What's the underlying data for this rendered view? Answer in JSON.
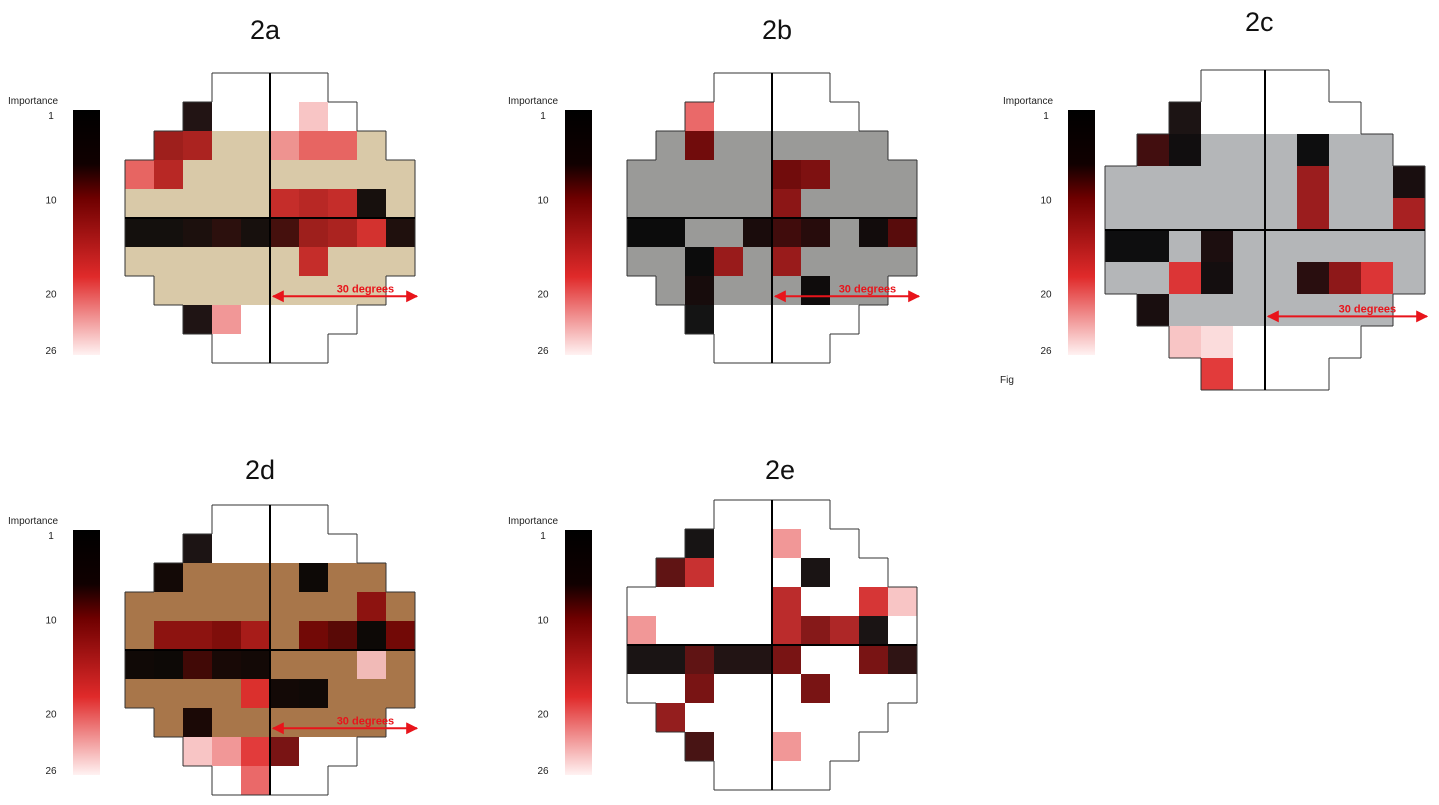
{
  "panels": [
    {
      "title": "2a",
      "colorbar_label": "Importance",
      "colorbar_ticks": [
        1,
        10,
        20,
        26
      ],
      "arrow_label": "30 degrees",
      "background": "#d9c9a8",
      "cells": [
        {
          "row": 5,
          "col": 0,
          "rank": 2
        },
        {
          "row": 5,
          "col": 1,
          "rank": 2
        },
        {
          "row": 5,
          "col": 2,
          "rank": 5
        },
        {
          "row": 5,
          "col": 3,
          "rank": 7
        },
        {
          "row": 5,
          "col": 4,
          "rank": 3
        },
        {
          "row": 5,
          "col": 5,
          "rank": 8
        },
        {
          "row": 5,
          "col": 6,
          "rank": 13
        },
        {
          "row": 5,
          "col": 7,
          "rank": 14
        },
        {
          "row": 5,
          "col": 8,
          "rank": 17
        },
        {
          "row": 5,
          "col": 9,
          "rank": 6
        },
        {
          "row": 1,
          "col": 2,
          "rank": 6
        },
        {
          "row": 1,
          "col": 6,
          "rank": 24
        },
        {
          "row": 2,
          "col": 1,
          "rank": 13
        },
        {
          "row": 2,
          "col": 2,
          "rank": 14
        },
        {
          "row": 2,
          "col": 5,
          "rank": 22
        },
        {
          "row": 2,
          "col": 6,
          "rank": 20
        },
        {
          "row": 2,
          "col": 7,
          "rank": 20
        },
        {
          "row": 3,
          "col": 0,
          "rank": 20
        },
        {
          "row": 3,
          "col": 1,
          "rank": 15
        },
        {
          "row": 4,
          "col": 5,
          "rank": 16
        },
        {
          "row": 4,
          "col": 6,
          "rank": 15
        },
        {
          "row": 4,
          "col": 7,
          "rank": 16
        },
        {
          "row": 4,
          "col": 8,
          "rank": 3
        },
        {
          "row": 6,
          "col": 6,
          "rank": 16
        },
        {
          "row": 8,
          "col": 2,
          "rank": 5
        },
        {
          "row": 8,
          "col": 3,
          "rank": 22
        }
      ]
    },
    {
      "title": "2b",
      "colorbar_label": "Importance",
      "colorbar_ticks": [
        1,
        10,
        20,
        26
      ],
      "arrow_label": "30 degrees",
      "background": "#9a9a98",
      "cells": [
        {
          "row": 1,
          "col": 2,
          "rank": 20
        },
        {
          "row": 2,
          "col": 2,
          "rank": 10
        },
        {
          "row": 3,
          "col": 5,
          "rank": 10
        },
        {
          "row": 3,
          "col": 6,
          "rank": 11
        },
        {
          "row": 4,
          "col": 5,
          "rank": 12
        },
        {
          "row": 5,
          "col": 0,
          "rank": 1
        },
        {
          "row": 5,
          "col": 1,
          "rank": 1
        },
        {
          "row": 5,
          "col": 4,
          "rank": 6
        },
        {
          "row": 5,
          "col": 5,
          "rank": 8
        },
        {
          "row": 5,
          "col": 6,
          "rank": 7
        },
        {
          "row": 5,
          "col": 8,
          "rank": 3
        },
        {
          "row": 5,
          "col": 9,
          "rank": 9
        },
        {
          "row": 6,
          "col": 2,
          "rank": 1
        },
        {
          "row": 6,
          "col": 3,
          "rank": 13
        },
        {
          "row": 6,
          "col": 5,
          "rank": 13
        },
        {
          "row": 7,
          "col": 2,
          "rank": 5
        },
        {
          "row": 7,
          "col": 6,
          "rank": 2
        },
        {
          "row": 8,
          "col": 2,
          "rank": 1
        }
      ]
    },
    {
      "title": "2c",
      "colorbar_label": "Importance",
      "colorbar_ticks": [
        1,
        10,
        20,
        26
      ],
      "arrow_label": "30 degrees",
      "background": "#b4b6b8",
      "cells": [
        {
          "row": 1,
          "col": 2,
          "rank": 4
        },
        {
          "row": 2,
          "col": 1,
          "rank": 8
        },
        {
          "row": 2,
          "col": 2,
          "rank": 2
        },
        {
          "row": 2,
          "col": 6,
          "rank": 1
        },
        {
          "row": 3,
          "col": 6,
          "rank": 13
        },
        {
          "row": 3,
          "col": 9,
          "rank": 5
        },
        {
          "row": 4,
          "col": 6,
          "rank": 13
        },
        {
          "row": 4,
          "col": 9,
          "rank": 14
        },
        {
          "row": 5,
          "col": 0,
          "rank": 1
        },
        {
          "row": 5,
          "col": 1,
          "rank": 1
        },
        {
          "row": 5,
          "col": 3,
          "rank": 6
        },
        {
          "row": 6,
          "col": 2,
          "rank": 18
        },
        {
          "row": 6,
          "col": 3,
          "rank": 3
        },
        {
          "row": 6,
          "col": 6,
          "rank": 7
        },
        {
          "row": 6,
          "col": 7,
          "rank": 12
        },
        {
          "row": 6,
          "col": 8,
          "rank": 18
        },
        {
          "row": 7,
          "col": 1,
          "rank": 5
        },
        {
          "row": 8,
          "col": 2,
          "rank": 24
        },
        {
          "row": 8,
          "col": 3,
          "rank": 25
        },
        {
          "row": 9,
          "col": 3,
          "rank": 18
        }
      ]
    },
    {
      "title": "2d",
      "colorbar_label": "Importance",
      "colorbar_ticks": [
        1,
        10,
        20,
        26
      ],
      "arrow_label": "30 degrees",
      "background": "#a8764a",
      "cells": [
        {
          "row": 1,
          "col": 2,
          "rank": 4
        },
        {
          "row": 2,
          "col": 1,
          "rank": 3
        },
        {
          "row": 2,
          "col": 6,
          "rank": 1
        },
        {
          "row": 3,
          "col": 8,
          "rank": 12
        },
        {
          "row": 4,
          "col": 1,
          "rank": 12
        },
        {
          "row": 4,
          "col": 2,
          "rank": 12
        },
        {
          "row": 4,
          "col": 3,
          "rank": 11
        },
        {
          "row": 4,
          "col": 4,
          "rank": 14
        },
        {
          "row": 4,
          "col": 6,
          "rank": 10
        },
        {
          "row": 4,
          "col": 7,
          "rank": 9
        },
        {
          "row": 4,
          "col": 8,
          "rank": 1
        },
        {
          "row": 4,
          "col": 9,
          "rank": 10
        },
        {
          "row": 5,
          "col": 0,
          "rank": 2
        },
        {
          "row": 5,
          "col": 1,
          "rank": 1
        },
        {
          "row": 5,
          "col": 2,
          "rank": 8
        },
        {
          "row": 5,
          "col": 3,
          "rank": 5
        },
        {
          "row": 5,
          "col": 4,
          "rank": 3
        },
        {
          "row": 5,
          "col": 8,
          "rank": 24
        },
        {
          "row": 6,
          "col": 4,
          "rank": 18
        },
        {
          "row": 6,
          "col": 5,
          "rank": 3
        },
        {
          "row": 6,
          "col": 6,
          "rank": 2
        },
        {
          "row": 7,
          "col": 2,
          "rank": 6
        },
        {
          "row": 8,
          "col": 2,
          "rank": 24
        },
        {
          "row": 8,
          "col": 3,
          "rank": 22
        },
        {
          "row": 8,
          "col": 4,
          "rank": 18
        },
        {
          "row": 8,
          "col": 5,
          "rank": 10
        },
        {
          "row": 9,
          "col": 4,
          "rank": 20
        }
      ]
    },
    {
      "title": "2e",
      "colorbar_label": "Importance",
      "colorbar_ticks": [
        1,
        10,
        20,
        26
      ],
      "background": "#ffffff",
      "cells": [
        {
          "row": 1,
          "col": 2,
          "rank": 2
        },
        {
          "row": 1,
          "col": 5,
          "rank": 22
        },
        {
          "row": 2,
          "col": 1,
          "rank": 9
        },
        {
          "row": 2,
          "col": 2,
          "rank": 16
        },
        {
          "row": 2,
          "col": 6,
          "rank": 3
        },
        {
          "row": 3,
          "col": 5,
          "rank": 15
        },
        {
          "row": 3,
          "col": 8,
          "rank": 17
        },
        {
          "row": 3,
          "col": 9,
          "rank": 24
        },
        {
          "row": 4,
          "col": 0,
          "rank": 22
        },
        {
          "row": 4,
          "col": 5,
          "rank": 15
        },
        {
          "row": 4,
          "col": 6,
          "rank": 11
        },
        {
          "row": 4,
          "col": 7,
          "rank": 14
        },
        {
          "row": 4,
          "col": 8,
          "rank": 3
        },
        {
          "row": 5,
          "col": 0,
          "rank": 3
        },
        {
          "row": 5,
          "col": 1,
          "rank": 3
        },
        {
          "row": 5,
          "col": 2,
          "rank": 9
        },
        {
          "row": 5,
          "col": 3,
          "rank": 6
        },
        {
          "row": 5,
          "col": 4,
          "rank": 6
        },
        {
          "row": 5,
          "col": 5,
          "rank": 10
        },
        {
          "row": 5,
          "col": 8,
          "rank": 10
        },
        {
          "row": 5,
          "col": 9,
          "rank": 7
        },
        {
          "row": 6,
          "col": 2,
          "rank": 10
        },
        {
          "row": 6,
          "col": 6,
          "rank": 10
        },
        {
          "row": 7,
          "col": 1,
          "rank": 12
        },
        {
          "row": 8,
          "col": 2,
          "rank": 8
        },
        {
          "row": 8,
          "col": 5,
          "rank": 22
        }
      ]
    }
  ],
  "note": "Fig"
}
